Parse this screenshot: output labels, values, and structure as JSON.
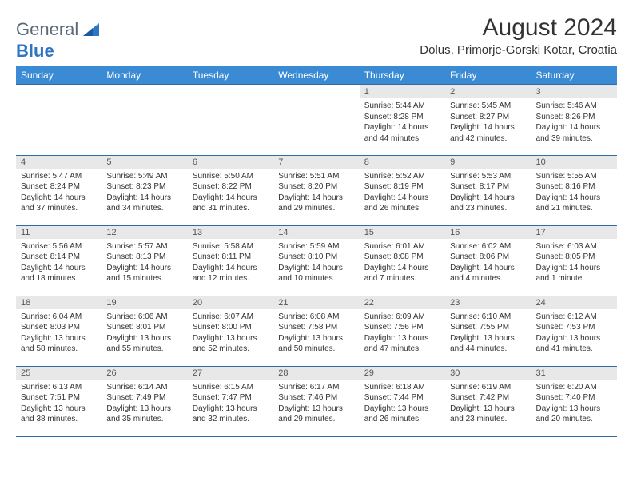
{
  "logo": {
    "part1": "General",
    "part2": "Blue",
    "icon_color": "#2e75c6"
  },
  "header": {
    "title": "August 2024",
    "location": "Dolus, Primorje-Gorski Kotar, Croatia"
  },
  "colors": {
    "header_bg": "#3b8bd4",
    "header_border": "#2e6ba8",
    "daynum_bg": "#e8e8e8",
    "text": "#333333",
    "logo_gray": "#5a6a78",
    "logo_blue": "#2e75c6"
  },
  "dayNames": [
    "Sunday",
    "Monday",
    "Tuesday",
    "Wednesday",
    "Thursday",
    "Friday",
    "Saturday"
  ],
  "weeks": [
    [
      {
        "empty": true
      },
      {
        "empty": true
      },
      {
        "empty": true
      },
      {
        "empty": true
      },
      {
        "num": "1",
        "sunrise": "5:44 AM",
        "sunset": "8:28 PM",
        "daylight": "14 hours and 44 minutes."
      },
      {
        "num": "2",
        "sunrise": "5:45 AM",
        "sunset": "8:27 PM",
        "daylight": "14 hours and 42 minutes."
      },
      {
        "num": "3",
        "sunrise": "5:46 AM",
        "sunset": "8:26 PM",
        "daylight": "14 hours and 39 minutes."
      }
    ],
    [
      {
        "num": "4",
        "sunrise": "5:47 AM",
        "sunset": "8:24 PM",
        "daylight": "14 hours and 37 minutes."
      },
      {
        "num": "5",
        "sunrise": "5:49 AM",
        "sunset": "8:23 PM",
        "daylight": "14 hours and 34 minutes."
      },
      {
        "num": "6",
        "sunrise": "5:50 AM",
        "sunset": "8:22 PM",
        "daylight": "14 hours and 31 minutes."
      },
      {
        "num": "7",
        "sunrise": "5:51 AM",
        "sunset": "8:20 PM",
        "daylight": "14 hours and 29 minutes."
      },
      {
        "num": "8",
        "sunrise": "5:52 AM",
        "sunset": "8:19 PM",
        "daylight": "14 hours and 26 minutes."
      },
      {
        "num": "9",
        "sunrise": "5:53 AM",
        "sunset": "8:17 PM",
        "daylight": "14 hours and 23 minutes."
      },
      {
        "num": "10",
        "sunrise": "5:55 AM",
        "sunset": "8:16 PM",
        "daylight": "14 hours and 21 minutes."
      }
    ],
    [
      {
        "num": "11",
        "sunrise": "5:56 AM",
        "sunset": "8:14 PM",
        "daylight": "14 hours and 18 minutes."
      },
      {
        "num": "12",
        "sunrise": "5:57 AM",
        "sunset": "8:13 PM",
        "daylight": "14 hours and 15 minutes."
      },
      {
        "num": "13",
        "sunrise": "5:58 AM",
        "sunset": "8:11 PM",
        "daylight": "14 hours and 12 minutes."
      },
      {
        "num": "14",
        "sunrise": "5:59 AM",
        "sunset": "8:10 PM",
        "daylight": "14 hours and 10 minutes."
      },
      {
        "num": "15",
        "sunrise": "6:01 AM",
        "sunset": "8:08 PM",
        "daylight": "14 hours and 7 minutes."
      },
      {
        "num": "16",
        "sunrise": "6:02 AM",
        "sunset": "8:06 PM",
        "daylight": "14 hours and 4 minutes."
      },
      {
        "num": "17",
        "sunrise": "6:03 AM",
        "sunset": "8:05 PM",
        "daylight": "14 hours and 1 minute."
      }
    ],
    [
      {
        "num": "18",
        "sunrise": "6:04 AM",
        "sunset": "8:03 PM",
        "daylight": "13 hours and 58 minutes."
      },
      {
        "num": "19",
        "sunrise": "6:06 AM",
        "sunset": "8:01 PM",
        "daylight": "13 hours and 55 minutes."
      },
      {
        "num": "20",
        "sunrise": "6:07 AM",
        "sunset": "8:00 PM",
        "daylight": "13 hours and 52 minutes."
      },
      {
        "num": "21",
        "sunrise": "6:08 AM",
        "sunset": "7:58 PM",
        "daylight": "13 hours and 50 minutes."
      },
      {
        "num": "22",
        "sunrise": "6:09 AM",
        "sunset": "7:56 PM",
        "daylight": "13 hours and 47 minutes."
      },
      {
        "num": "23",
        "sunrise": "6:10 AM",
        "sunset": "7:55 PM",
        "daylight": "13 hours and 44 minutes."
      },
      {
        "num": "24",
        "sunrise": "6:12 AM",
        "sunset": "7:53 PM",
        "daylight": "13 hours and 41 minutes."
      }
    ],
    [
      {
        "num": "25",
        "sunrise": "6:13 AM",
        "sunset": "7:51 PM",
        "daylight": "13 hours and 38 minutes."
      },
      {
        "num": "26",
        "sunrise": "6:14 AM",
        "sunset": "7:49 PM",
        "daylight": "13 hours and 35 minutes."
      },
      {
        "num": "27",
        "sunrise": "6:15 AM",
        "sunset": "7:47 PM",
        "daylight": "13 hours and 32 minutes."
      },
      {
        "num": "28",
        "sunrise": "6:17 AM",
        "sunset": "7:46 PM",
        "daylight": "13 hours and 29 minutes."
      },
      {
        "num": "29",
        "sunrise": "6:18 AM",
        "sunset": "7:44 PM",
        "daylight": "13 hours and 26 minutes."
      },
      {
        "num": "30",
        "sunrise": "6:19 AM",
        "sunset": "7:42 PM",
        "daylight": "13 hours and 23 minutes."
      },
      {
        "num": "31",
        "sunrise": "6:20 AM",
        "sunset": "7:40 PM",
        "daylight": "13 hours and 20 minutes."
      }
    ]
  ],
  "labels": {
    "sunrise": "Sunrise: ",
    "sunset": "Sunset: ",
    "daylight": "Daylight: "
  }
}
